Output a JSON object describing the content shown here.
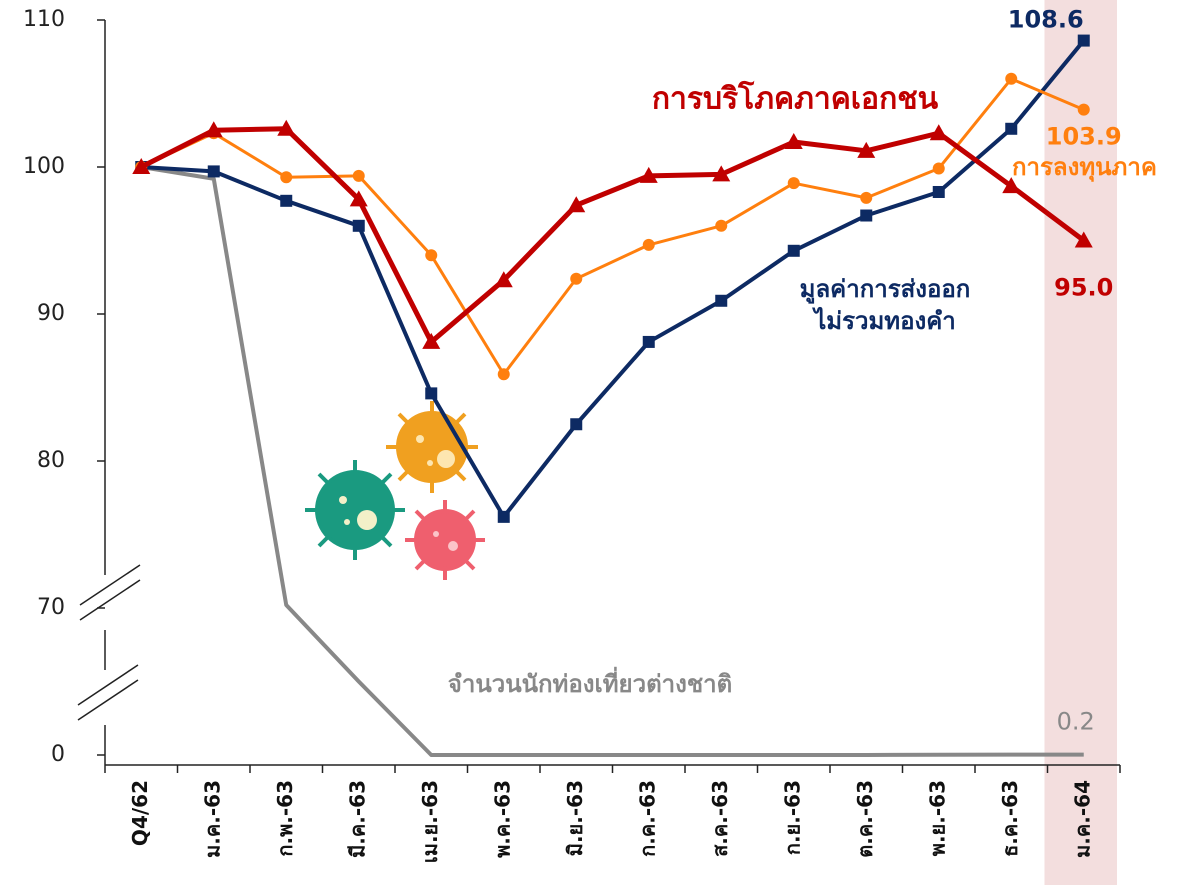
{
  "chart_data": {
    "type": "line",
    "categories": [
      "Q4/62",
      "ม.ค.-63",
      "ก.พ.-63",
      "มี.ค.-63",
      "เม.ย.-63",
      "พ.ค.-63",
      "มิ.ย.-63",
      "ก.ค.-63",
      "ส.ค.-63",
      "ก.ย.-63",
      "ต.ค.-63",
      "พ.ย.-63",
      "ธ.ค.-63",
      "ม.ค.-64"
    ],
    "series": [
      {
        "name": "การบริโภคภาคเอกชน",
        "color": "#c00000",
        "marker": "triangle",
        "values": [
          100,
          102.5,
          102.6,
          97.8,
          88.1,
          92.3,
          97.4,
          99.4,
          99.5,
          101.7,
          101.1,
          102.3,
          98.7,
          95.0
        ],
        "value_labels": [
          null,
          null,
          null,
          null,
          null,
          null,
          null,
          null,
          null,
          null,
          null,
          null,
          null,
          "95.0"
        ]
      },
      {
        "name": "การลงทุนภาค",
        "color": "#ff7f0e",
        "marker": "circle",
        "values": [
          100,
          102.3,
          99.3,
          99.4,
          94.0,
          85.9,
          92.4,
          94.7,
          96.0,
          98.9,
          97.9,
          99.9,
          106.0,
          103.9
        ],
        "value_labels": [
          null,
          null,
          null,
          null,
          null,
          null,
          null,
          null,
          null,
          null,
          null,
          null,
          null,
          "103.9"
        ]
      },
      {
        "name": "มูลค่าการส่งออก ไม่รวมทองคำ",
        "color": "#0d2a63",
        "marker": "square",
        "values": [
          100,
          99.7,
          97.7,
          96.0,
          84.6,
          76.2,
          82.5,
          88.1,
          90.9,
          94.3,
          96.7,
          98.3,
          102.6,
          108.6
        ],
        "value_labels": [
          null,
          null,
          null,
          null,
          null,
          null,
          null,
          null,
          null,
          null,
          null,
          null,
          null,
          "108.6"
        ]
      },
      {
        "name": "จำนวนนักท่องเที่ยวต่างชาติ",
        "color": "#888888",
        "marker": "none",
        "values": [
          100,
          99.2,
          70.2,
          35,
          0,
          0,
          0,
          0,
          0,
          0,
          0,
          0.1,
          0.2,
          0.2
        ],
        "value_labels": [
          null,
          null,
          null,
          null,
          null,
          null,
          null,
          null,
          null,
          null,
          null,
          null,
          null,
          "0.2"
        ]
      }
    ],
    "ylim": [
      0,
      110
    ],
    "yticks": [
      0,
      70,
      80,
      90,
      100,
      110
    ],
    "axis_break": true,
    "highlight_category": 13,
    "highlight_color": "#f3dede"
  }
}
